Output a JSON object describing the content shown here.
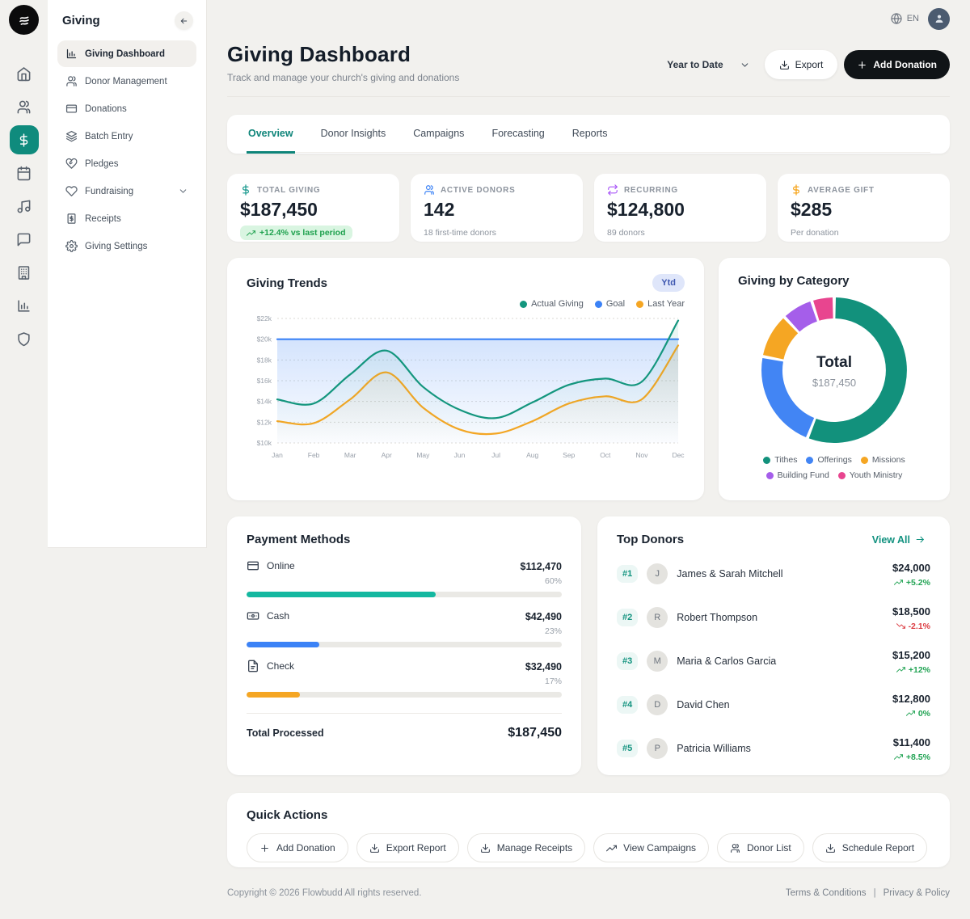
{
  "topbar": {
    "language": "EN"
  },
  "rail": {
    "items": [
      {
        "icon": "home-icon"
      },
      {
        "icon": "users-icon"
      },
      {
        "icon": "dollar-icon",
        "active": true
      },
      {
        "icon": "calendar-icon"
      },
      {
        "icon": "music-icon"
      },
      {
        "icon": "chat-icon"
      },
      {
        "icon": "building-icon"
      },
      {
        "icon": "analytics-icon"
      },
      {
        "icon": "shield-icon"
      }
    ]
  },
  "sidebar": {
    "title": "Giving",
    "items": [
      {
        "icon": "chart-icon",
        "label": "Giving Dashboard",
        "active": true
      },
      {
        "icon": "users-icon",
        "label": "Donor Management"
      },
      {
        "icon": "card-icon",
        "label": "Donations"
      },
      {
        "icon": "layers-icon",
        "label": "Batch Entry"
      },
      {
        "icon": "handshake-icon",
        "label": "Pledges"
      },
      {
        "icon": "heart-icon",
        "label": "Fundraising",
        "expandable": true
      },
      {
        "icon": "receipt-icon",
        "label": "Receipts"
      },
      {
        "icon": "gear-icon",
        "label": "Giving Settings"
      }
    ]
  },
  "page": {
    "title": "Giving Dashboard",
    "subtitle": "Track and manage your church's giving and donations"
  },
  "controls": {
    "period_value": "Year to Date",
    "export_label": "Export",
    "add_donation_label": "Add Donation"
  },
  "tabs": {
    "items": [
      {
        "label": "Overview",
        "active": true
      },
      {
        "label": "Donor Insights"
      },
      {
        "label": "Campaigns"
      },
      {
        "label": "Forecasting"
      },
      {
        "label": "Reports"
      }
    ]
  },
  "stats": {
    "cards": [
      {
        "icon": "dollar-icon",
        "icon_color": "#0d9488",
        "label": "TOTAL GIVING",
        "value": "$187,450",
        "badge": "+12.4% vs last period"
      },
      {
        "icon": "users-icon",
        "icon_color": "#3b82f6",
        "label": "ACTIVE DONORS",
        "value": "142",
        "sub": "18 first-time donors"
      },
      {
        "icon": "repeat-icon",
        "icon_color": "#a855f7",
        "label": "RECURRING",
        "value": "$124,800",
        "sub": "89 donors"
      },
      {
        "icon": "dollar-icon",
        "icon_color": "#f59e0b",
        "label": "AVERAGE GIFT",
        "value": "$285",
        "sub": "Per donation"
      }
    ]
  },
  "chart_data": [
    {
      "type": "line",
      "title": "Giving Trends",
      "badge": "Ytd",
      "x": [
        "Jan",
        "Feb",
        "Mar",
        "Apr",
        "May",
        "Jun",
        "Jul",
        "Aug",
        "Sep",
        "Oct",
        "Nov",
        "Dec"
      ],
      "series": [
        {
          "name": "Actual Giving",
          "color": "#14967e",
          "values": [
            14.2,
            13.8,
            16.6,
            18.9,
            15.4,
            13.2,
            12.4,
            13.9,
            15.6,
            16.2,
            15.9,
            21.8
          ]
        },
        {
          "name": "Goal",
          "color": "#3b82f6",
          "values": [
            20,
            20,
            20,
            20,
            20,
            20,
            20,
            20,
            20,
            20,
            20,
            20
          ]
        },
        {
          "name": "Last Year",
          "color": "#f5a623",
          "values": [
            12.1,
            11.9,
            14.2,
            16.8,
            13.4,
            11.3,
            10.9,
            12.1,
            13.8,
            14.5,
            14.2,
            19.4
          ]
        }
      ],
      "ylim": [
        10,
        22
      ],
      "ytick_step": 2,
      "ytick_format": "$Nk",
      "grid": true,
      "legend_position": "top-right"
    },
    {
      "type": "pie",
      "title": "Giving by Category",
      "center_label": "Total",
      "center_value": "$187,450",
      "slices": [
        {
          "label": "Tithes",
          "value": 56,
          "color": "#12917c"
        },
        {
          "label": "Offerings",
          "value": 22,
          "color": "#4285f4"
        },
        {
          "label": "Missions",
          "value": 10,
          "color": "#f5a623"
        },
        {
          "label": "Building Fund",
          "value": 7,
          "color": "#a55eea"
        },
        {
          "label": "Youth Ministry",
          "value": 5,
          "color": "#e8458f"
        }
      ]
    }
  ],
  "payment_methods": {
    "title": "Payment Methods",
    "rows": [
      {
        "icon": "card-icon",
        "label": "Online",
        "amount": "$112,470",
        "percent": "60%",
        "pct": 60,
        "color": "#14b8a0"
      },
      {
        "icon": "banknote-icon",
        "label": "Cash",
        "amount": "$42,490",
        "percent": "23%",
        "pct": 23,
        "color": "#3b82f6"
      },
      {
        "icon": "file-icon",
        "label": "Check",
        "amount": "$32,490",
        "percent": "17%",
        "pct": 17,
        "color": "#f5a623"
      }
    ],
    "total_label": "Total Processed",
    "total_value": "$187,450"
  },
  "top_donors": {
    "title": "Top Donors",
    "view_all": "View All",
    "items": [
      {
        "rank": "#1",
        "initial": "J",
        "name": "James & Sarah Mitchell",
        "amount": "$24,000",
        "change": "+5.2%",
        "trend": "up"
      },
      {
        "rank": "#2",
        "initial": "R",
        "name": "Robert Thompson",
        "amount": "$18,500",
        "change": "-2.1%",
        "trend": "down"
      },
      {
        "rank": "#3",
        "initial": "M",
        "name": "Maria & Carlos Garcia",
        "amount": "$15,200",
        "change": "+12%",
        "trend": "up"
      },
      {
        "rank": "#4",
        "initial": "D",
        "name": "David Chen",
        "amount": "$12,800",
        "change": "0%",
        "trend": "up"
      },
      {
        "rank": "#5",
        "initial": "P",
        "name": "Patricia Williams",
        "amount": "$11,400",
        "change": "+8.5%",
        "trend": "up"
      }
    ]
  },
  "quick_actions": {
    "title": "Quick Actions",
    "buttons": [
      {
        "icon": "plus-icon",
        "label": "Add Donation"
      },
      {
        "icon": "download-icon",
        "label": "Export Report"
      },
      {
        "icon": "download-icon",
        "label": "Manage Receipts"
      },
      {
        "icon": "trending-up-icon",
        "label": "View Campaigns"
      },
      {
        "icon": "users-icon",
        "label": "Donor List"
      },
      {
        "icon": "download-icon",
        "label": "Schedule Report"
      }
    ]
  },
  "footer": {
    "copyright": "Copyright © 2026 Flowbudd All rights reserved.",
    "terms": "Terms & Conditions",
    "separator": "|",
    "privacy": "Privacy & Policy"
  }
}
